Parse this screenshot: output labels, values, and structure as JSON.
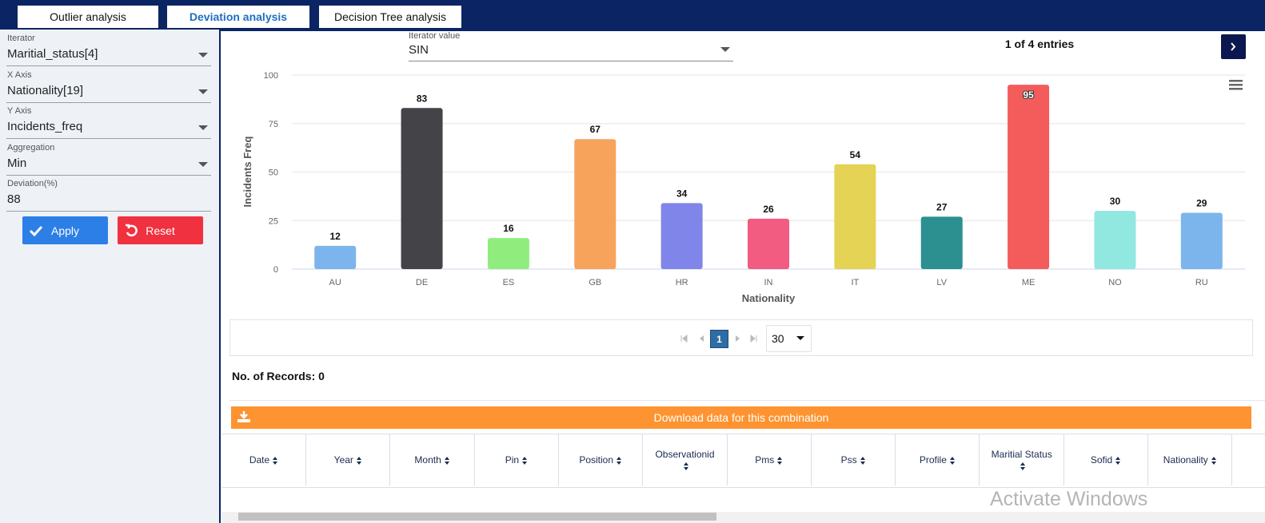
{
  "tabs": [
    "Outlier analysis",
    "Deviation analysis",
    "Decision Tree analysis"
  ],
  "sidebar": {
    "fields": [
      {
        "label": "Iterator",
        "value": "Maritial_status[4]"
      },
      {
        "label": "X Axis",
        "value": "Nationality[19]"
      },
      {
        "label": "Y Axis",
        "value": "Incidents_freq"
      },
      {
        "label": "Aggregation",
        "value": "Min"
      },
      {
        "label": "Deviation(%)",
        "value": "88"
      }
    ],
    "apply": "Apply",
    "reset": "Reset"
  },
  "iterator_value": {
    "label": "Iterator value",
    "value": "SIN"
  },
  "entries": "1 of 4 entries",
  "chart_data": {
    "type": "bar",
    "xlabel": "Nationality",
    "ylabel": "Incidents Freq",
    "categories": [
      "AU",
      "DE",
      "ES",
      "GB",
      "HR",
      "IN",
      "IT",
      "LV",
      "ME",
      "NO",
      "RU"
    ],
    "values": [
      12,
      83,
      16,
      67,
      34,
      26,
      54,
      27,
      95,
      30,
      29
    ],
    "colors": [
      "#7cb5ec",
      "#434348",
      "#90ed7d",
      "#f7a35c",
      "#8085e9",
      "#f15c80",
      "#e4d354",
      "#2b908f",
      "#f45b5b",
      "#91e8e1",
      "#7cb5ec"
    ],
    "ylim": [
      0,
      100
    ],
    "yticks": [
      0,
      25,
      50,
      75,
      100
    ],
    "grid": true
  },
  "pagination": {
    "page": 1,
    "page_size": 30
  },
  "records": "No. of Records: 0",
  "download": "Download data for this combination",
  "table": {
    "columns": [
      "Date",
      "Year",
      "Month",
      "Pin",
      "Position",
      "Observationid",
      "Pms",
      "Pss",
      "Profile",
      "Maritial Status",
      "Sofid",
      "Nationality"
    ]
  },
  "watermark": "Activate Windows"
}
